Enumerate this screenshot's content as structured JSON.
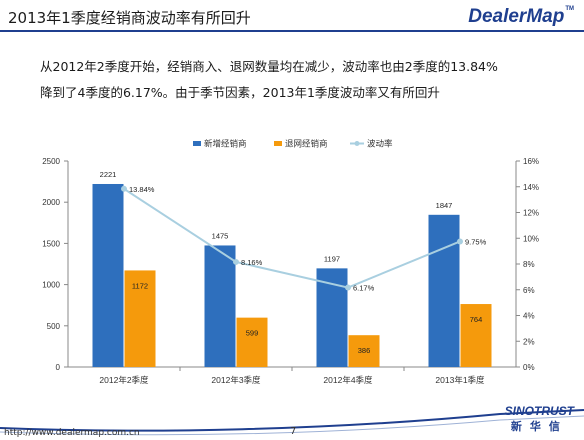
{
  "header": {
    "title": "2013年1季度经销商波动率有所回升",
    "brand": "DealerMap",
    "brand_tm": "TM"
  },
  "summary": {
    "line1": "从2012年2季度开始，经销商入、退网数量均在减少，波动率也由2季度的13.84%",
    "line2": "降到了4季度的6.17%。由于季节因素，2013年1季度波动率又有所回升"
  },
  "chart_data": {
    "type": "bar",
    "categories": [
      "2012年2季度",
      "2012年3季度",
      "2012年4季度",
      "2013年1季度"
    ],
    "series": [
      {
        "name": "新增经销商",
        "kind": "bar",
        "axis": "left",
        "color": "#2e6fbd",
        "values": [
          2221,
          1475,
          1197,
          1847
        ],
        "labels": [
          "2221",
          "1475",
          "1197",
          "1847"
        ]
      },
      {
        "name": "退网经销商",
        "kind": "bar",
        "axis": "left",
        "color": "#f59a0c",
        "values": [
          1172,
          599,
          386,
          764
        ],
        "labels": [
          "1172",
          "599",
          "386",
          "764"
        ]
      },
      {
        "name": "波动率",
        "kind": "line",
        "axis": "right",
        "color": "#a9cfe0",
        "values": [
          13.84,
          8.16,
          6.17,
          9.75
        ],
        "labels": [
          "13.84%",
          "8.16%",
          "6.17%",
          "9.75%"
        ]
      }
    ],
    "ylim": [
      0,
      2500
    ],
    "yticks": [
      "0",
      "500",
      "1000",
      "1500",
      "2000",
      "2500"
    ],
    "y2lim": [
      0,
      16
    ],
    "y2ticks": [
      "0%",
      "2%",
      "4%",
      "6%",
      "8%",
      "10%",
      "12%",
      "14%",
      "16%"
    ],
    "legend": "top-center",
    "grid": false
  },
  "footer": {
    "url": "http://www.dealermap.com.cn",
    "page": "7",
    "brand_en": "SINOTRUST",
    "brand_cn": "新华信"
  }
}
